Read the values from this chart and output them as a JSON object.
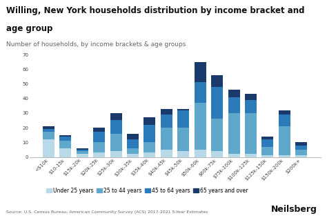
{
  "title_line1": "Willing, New York households distribution by income bracket and",
  "title_line2": "age group",
  "subtitle": "Number of households, by income brackets & age groups",
  "source": "Source: U.S. Census Bureau, American Community Survey (ACS) 2017-2021 5-Year Estimates",
  "categories": [
    "<$10k",
    "$10-15k",
    "$15k-20k",
    "$20k-25k",
    "$25k-30k",
    "$30k-35k",
    "$35k-40k",
    "$40k-45k",
    "$45k-50k",
    "$50k-60k",
    "$60k-75k",
    "$75k-100k",
    "$100k-125k",
    "$125k-150k",
    "$150k-200k",
    "$200k+"
  ],
  "under25": [
    12,
    6,
    2,
    3,
    4,
    2,
    3,
    5,
    4,
    5,
    4,
    2,
    2,
    1,
    1,
    1
  ],
  "age25_44": [
    5,
    5,
    2,
    7,
    12,
    4,
    7,
    15,
    16,
    32,
    22,
    28,
    28,
    6,
    20,
    4
  ],
  "age45_64": [
    2,
    3,
    1,
    7,
    9,
    6,
    12,
    9,
    12,
    14,
    22,
    11,
    9,
    5,
    8,
    3
  ],
  "age65plus": [
    2,
    1,
    1,
    3,
    5,
    4,
    5,
    4,
    1,
    14,
    8,
    5,
    4,
    2,
    3,
    2
  ],
  "color_under25": "#b8d9e8",
  "color_25_44": "#5fa8cc",
  "color_45_64": "#2b7bba",
  "color_65plus": "#1a3a6b",
  "ylim": [
    0,
    70
  ],
  "yticks": [
    0,
    10,
    20,
    30,
    40,
    50,
    60,
    70
  ],
  "background_color": "#ffffff",
  "title_fontsize": 8.5,
  "subtitle_fontsize": 6.5,
  "tick_fontsize": 5,
  "legend_fontsize": 5.5,
  "source_fontsize": 4.5,
  "neilsberg_fontsize": 9
}
